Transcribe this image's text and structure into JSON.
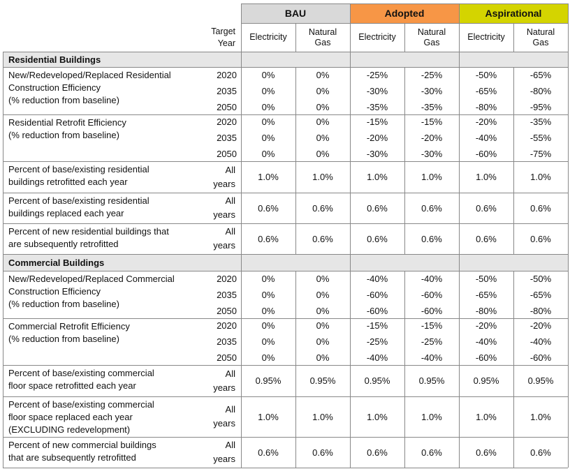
{
  "scenarios": [
    {
      "label": "BAU",
      "color": "#d9d9d9"
    },
    {
      "label": "Adopted",
      "color": "#f79646"
    },
    {
      "label": "Aspirational",
      "color": "#d4d400"
    }
  ],
  "columns": {
    "target_year": "Target\nYear",
    "electricity": "Electricity",
    "natural_gas": "Natural\nGas"
  },
  "sections": [
    {
      "title": "Residential Buildings",
      "rows": [
        {
          "label": "New/Redeveloped/Replaced Residential\nConstruction Efficiency\n(% reduction from baseline)",
          "years": [
            "2020",
            "2035",
            "2050"
          ],
          "values": [
            [
              "0%",
              "0%",
              "0%"
            ],
            [
              "0%",
              "0%",
              "0%"
            ],
            [
              "-25%",
              "-30%",
              "-35%"
            ],
            [
              "-25%",
              "-30%",
              "-35%"
            ],
            [
              "-50%",
              "-65%",
              "-80%"
            ],
            [
              "-65%",
              "-80%",
              "-95%"
            ]
          ]
        },
        {
          "label": "Residential Retrofit Efficiency\n(% reduction from baseline)",
          "years": [
            "2020",
            "2035",
            "2050"
          ],
          "values": [
            [
              "0%",
              "0%",
              "0%"
            ],
            [
              "0%",
              "0%",
              "0%"
            ],
            [
              "-15%",
              "-20%",
              "-30%"
            ],
            [
              "-15%",
              "-20%",
              "-30%"
            ],
            [
              "-20%",
              "-40%",
              "-60%"
            ],
            [
              "-35%",
              "-55%",
              "-75%"
            ]
          ]
        },
        {
          "label": "Percent of base/existing residential\nbuildings retrofitted each year",
          "years": [
            "All\nyears"
          ],
          "values": [
            [
              "1.0%"
            ],
            [
              "1.0%"
            ],
            [
              "1.0%"
            ],
            [
              "1.0%"
            ],
            [
              "1.0%"
            ],
            [
              "1.0%"
            ]
          ]
        },
        {
          "label": "Percent of base/existing residential\nbuildings replaced each year",
          "years": [
            "All\nyears"
          ],
          "values": [
            [
              "0.6%"
            ],
            [
              "0.6%"
            ],
            [
              "0.6%"
            ],
            [
              "0.6%"
            ],
            [
              "0.6%"
            ],
            [
              "0.6%"
            ]
          ]
        },
        {
          "label": "Percent of new residential buildings that\nare subsequently retrofitted",
          "years": [
            "All\nyears"
          ],
          "values": [
            [
              "0.6%"
            ],
            [
              "0.6%"
            ],
            [
              "0.6%"
            ],
            [
              "0.6%"
            ],
            [
              "0.6%"
            ],
            [
              "0.6%"
            ]
          ]
        }
      ]
    },
    {
      "title": "Commercial Buildings",
      "rows": [
        {
          "label": "New/Redeveloped/Replaced Commercial\nConstruction Efficiency\n(% reduction from baseline)",
          "years": [
            "2020",
            "2035",
            "2050"
          ],
          "values": [
            [
              "0%",
              "0%",
              "0%"
            ],
            [
              "0%",
              "0%",
              "0%"
            ],
            [
              "-40%",
              "-60%",
              "-60%"
            ],
            [
              "-40%",
              "-60%",
              "-60%"
            ],
            [
              "-50%",
              "-65%",
              "-80%"
            ],
            [
              "-50%",
              "-65%",
              "-80%"
            ]
          ]
        },
        {
          "label": "Commercial Retrofit Efficiency\n(% reduction from baseline)",
          "years": [
            "2020",
            "2035",
            "2050"
          ],
          "values": [
            [
              "0%",
              "0%",
              "0%"
            ],
            [
              "0%",
              "0%",
              "0%"
            ],
            [
              "-15%",
              "-25%",
              "-40%"
            ],
            [
              "-15%",
              "-25%",
              "-40%"
            ],
            [
              "-20%",
              "-40%",
              "-60%"
            ],
            [
              "-20%",
              "-40%",
              "-60%"
            ]
          ]
        },
        {
          "label": "Percent of base/existing commercial\nfloor space retrofitted each year",
          "years": [
            "All\nyears"
          ],
          "values": [
            [
              "0.95%"
            ],
            [
              "0.95%"
            ],
            [
              "0.95%"
            ],
            [
              "0.95%"
            ],
            [
              "0.95%"
            ],
            [
              "0.95%"
            ]
          ]
        },
        {
          "label": "Percent of base/existing commercial\nfloor space replaced each year\n(EXCLUDING redevelopment)",
          "years": [
            "All\nyears"
          ],
          "values": [
            [
              "1.0%"
            ],
            [
              "1.0%"
            ],
            [
              "1.0%"
            ],
            [
              "1.0%"
            ],
            [
              "1.0%"
            ],
            [
              "1.0%"
            ]
          ]
        },
        {
          "label": "Percent of new commercial buildings\nthat are subsequently retrofitted",
          "years": [
            "All\nyears"
          ],
          "values": [
            [
              "0.6%"
            ],
            [
              "0.6%"
            ],
            [
              "0.6%"
            ],
            [
              "0.6%"
            ],
            [
              "0.6%"
            ],
            [
              "0.6%"
            ]
          ]
        }
      ]
    }
  ]
}
